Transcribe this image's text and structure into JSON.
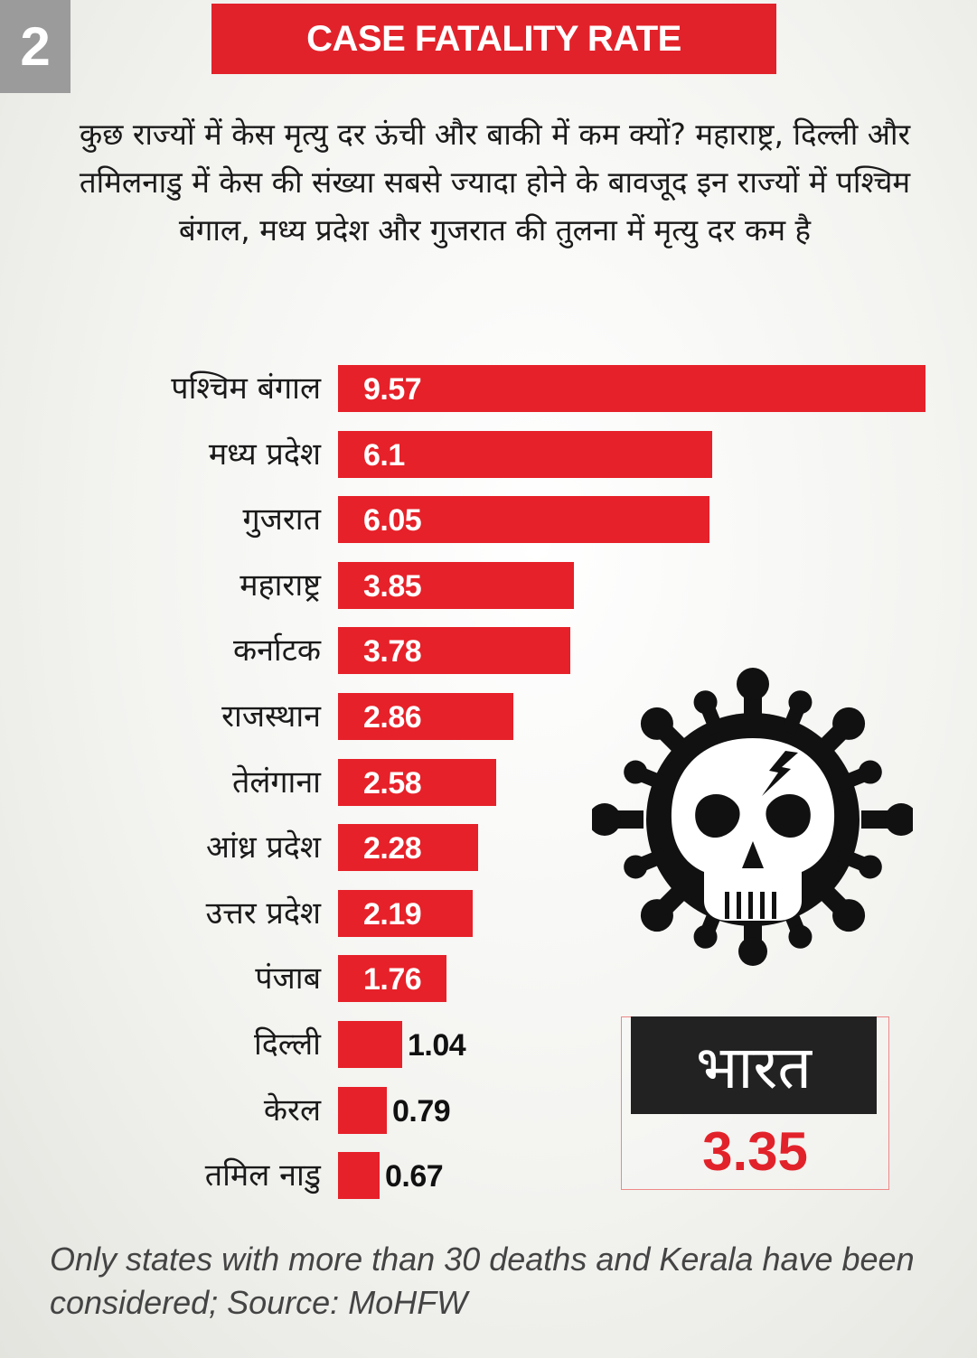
{
  "badge": "2",
  "title": "CASE FATALITY RATE",
  "subtitle": "कुछ राज्यों में केस मृत्यु दर ऊंची और बाकी में कम क्यों? महाराष्ट्र, दिल्ली और तमिलनाडु में केस की संख्या सबसे ज्यादा होने के बावजूद इन राज्यों में पश्चिम बंगाल, मध्य प्रदेश और गुजरात की तुलना में मृत्यु दर कम है",
  "chart_data": {
    "type": "bar",
    "orientation": "horizontal",
    "categories": [
      "पश्चिम बंगाल",
      "मध्य प्रदेश",
      "गुजरात",
      "महाराष्ट्र",
      "कर्नाटक",
      "राजस्थान",
      "तेलंगाना",
      "आंध्र प्रदेश",
      "उत्तर प्रदेश",
      "पंजाब",
      "दिल्ली",
      "केरल",
      "तमिल नाडु"
    ],
    "values": [
      9.57,
      6.1,
      6.05,
      3.85,
      3.78,
      2.86,
      2.58,
      2.28,
      2.19,
      1.76,
      1.04,
      0.79,
      0.67
    ],
    "value_labels": [
      "9.57",
      "6.1",
      "6.05",
      "3.85",
      "3.78",
      "2.86",
      "2.58",
      "2.28",
      "2.19",
      "1.76",
      "1.04",
      "0.79",
      "0.67"
    ],
    "bar_color": "#e62129",
    "grid": false
  },
  "national": {
    "label": "भारत",
    "value": "3.35"
  },
  "icon": "virus-skull-icon",
  "footnote": "Only states with more than 30 deaths and Kerala have been considered; Source: MoHFW",
  "colors": {
    "accent": "#e2222a",
    "badge": "#9b9b9b",
    "dark": "#222222"
  }
}
